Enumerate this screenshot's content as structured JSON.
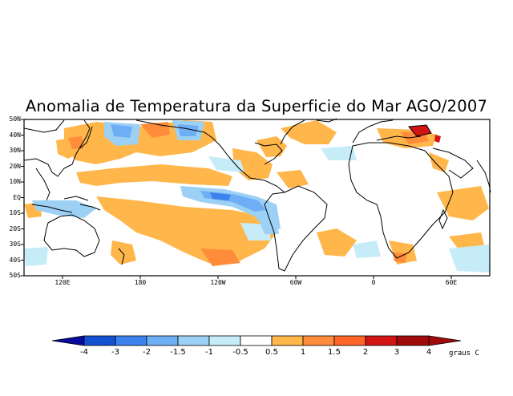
{
  "title": "Anomalia de Temperatura da Superficie do Mar AGO/2007",
  "lat_labels": [
    "50N",
    "40N",
    "30N",
    "20N",
    "10N",
    "EQ",
    "10S",
    "20S",
    "30S",
    "40S",
    "50S"
  ],
  "lon_labels": [
    "120E",
    "180",
    "120W",
    "60W",
    "0",
    "60E"
  ],
  "colorbar": {
    "labels": [
      "-4",
      "-3",
      "-2",
      "-1.5",
      "-1",
      "-0.5",
      "0.5",
      "1",
      "1.5",
      "2",
      "3",
      "4"
    ],
    "colors": [
      "#0a0aa0",
      "#1450d2",
      "#3c82ef",
      "#6eaef5",
      "#9cd0f5",
      "#c6ecf8",
      "#ffffff",
      "#ffb64a",
      "#ff8c3a",
      "#ff6428",
      "#d21414",
      "#a00a0a"
    ],
    "units": "graus C"
  },
  "colors": {
    "land_outline": "#000000",
    "warm_1": "#ffb64a",
    "warm_2": "#ff8c3a",
    "warm_3": "#ff6428",
    "warm_4": "#d21414",
    "cool_1": "#c6ecf8",
    "cool_2": "#9cd0f5",
    "cool_3": "#6eaef5",
    "cool_4": "#3c82ef"
  }
}
